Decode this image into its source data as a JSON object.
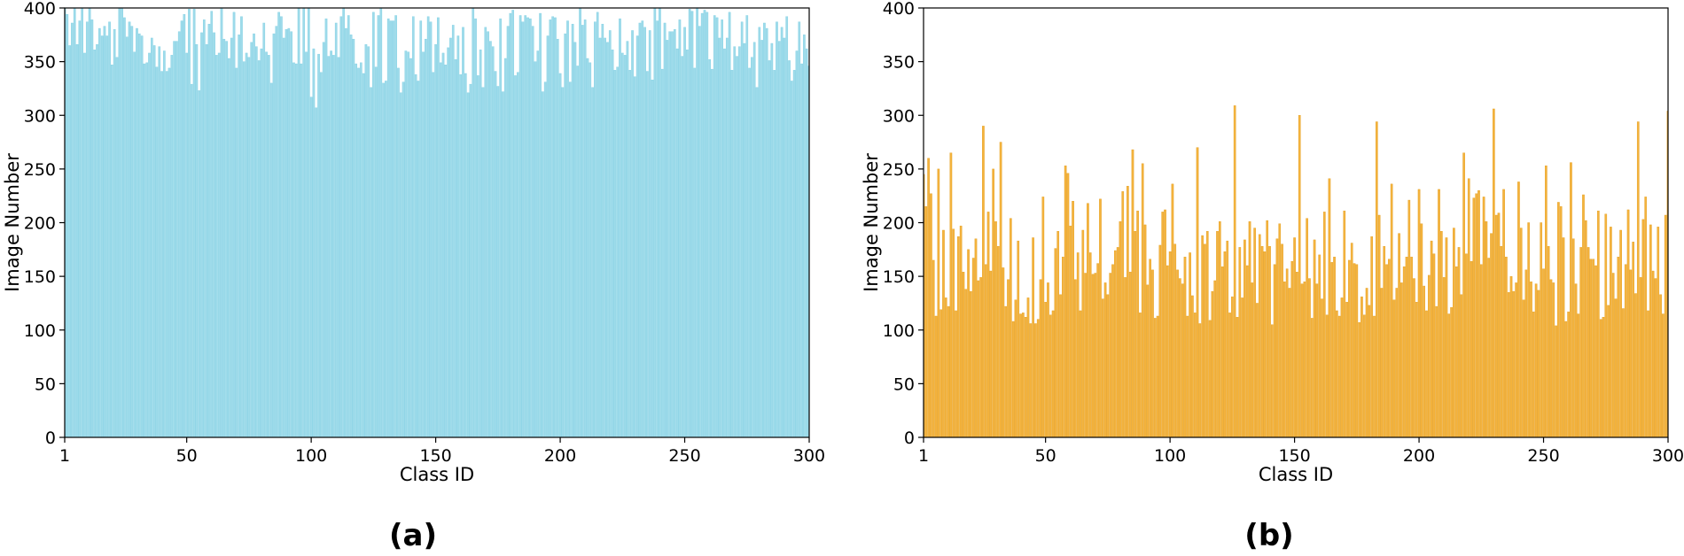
{
  "chart_data": [
    {
      "type": "bar",
      "panel_label": "(a)",
      "xlabel": "Class ID",
      "ylabel": "Image Number",
      "color": "#9edbea",
      "edge_color": "#7fcfe3",
      "xlim": [
        1,
        300
      ],
      "ylim": [
        0,
        400
      ],
      "x_ticks": [
        1,
        50,
        100,
        150,
        200,
        250,
        300
      ],
      "y_ticks": [
        0,
        50,
        100,
        150,
        200,
        250,
        300,
        350,
        400
      ],
      "grid": false,
      "x": [
        1,
        2,
        3,
        4,
        5,
        6,
        7,
        8,
        9,
        10,
        11,
        12,
        13,
        14,
        15,
        16,
        17,
        18,
        19,
        20,
        21,
        22,
        23,
        24,
        25,
        26,
        27,
        28,
        29,
        30,
        31,
        32,
        33,
        34,
        35,
        36,
        37,
        38,
        39,
        40,
        41,
        42,
        43,
        44,
        45,
        46,
        47,
        48,
        49,
        50,
        51,
        52,
        53,
        54,
        55,
        56,
        57,
        58,
        59,
        60,
        61,
        62,
        63,
        64,
        65,
        66,
        67,
        68,
        69,
        70,
        71,
        72,
        73,
        74,
        75,
        76,
        77,
        78,
        79,
        80,
        81,
        82,
        83,
        84,
        85,
        86,
        87,
        88,
        89,
        90,
        91,
        92,
        93,
        94,
        95,
        96,
        97,
        98,
        99,
        100,
        101,
        102,
        103,
        104,
        105,
        106,
        107,
        108,
        109,
        110,
        111,
        112,
        113,
        114,
        115,
        116,
        117,
        118,
        119,
        120,
        121,
        122,
        123,
        124,
        125,
        126,
        127,
        128,
        129,
        130,
        131,
        132,
        133,
        134,
        135,
        136,
        137,
        138,
        139,
        140,
        141,
        142,
        143,
        144,
        145,
        146,
        147,
        148,
        149,
        150,
        151,
        152,
        153,
        154,
        155,
        156,
        157,
        158,
        159,
        160,
        161,
        162,
        163,
        164,
        165,
        166,
        167,
        168,
        169,
        170,
        171,
        172,
        173,
        174,
        175,
        176,
        177,
        178,
        179,
        180,
        181,
        182,
        183,
        184,
        185,
        186,
        187,
        188,
        189,
        190,
        191,
        192,
        193,
        194,
        195,
        196,
        197,
        198,
        199,
        200,
        201,
        202,
        203,
        204,
        205,
        206,
        207,
        208,
        209,
        210,
        211,
        212,
        213,
        214,
        215,
        216,
        217,
        218,
        219,
        220,
        221,
        222,
        223,
        224,
        225,
        226,
        227,
        228,
        229,
        230,
        231,
        232,
        233,
        234,
        235,
        236,
        237,
        238,
        239,
        240,
        241,
        242,
        243,
        244,
        245,
        246,
        247,
        248,
        249,
        250,
        251,
        252,
        253,
        254,
        255,
        256,
        257,
        258,
        259,
        260,
        261,
        262,
        263,
        264,
        265,
        266,
        267,
        268,
        269,
        270,
        271,
        272,
        273,
        274,
        275,
        276,
        277,
        278,
        279,
        280,
        281,
        282,
        283,
        284,
        285,
        286,
        287,
        288,
        289,
        290,
        291,
        292,
        293,
        294,
        295,
        296,
        297,
        298,
        299,
        300
      ],
      "values": [
        401,
        394,
        365,
        386,
        402,
        366,
        388,
        405,
        358,
        387,
        400,
        389,
        361,
        366,
        381,
        374,
        383,
        374,
        387,
        347,
        380,
        354,
        405,
        401,
        391,
        373,
        387,
        383,
        359,
        381,
        376,
        374,
        348,
        349,
        358,
        372,
        365,
        345,
        364,
        341,
        360,
        341,
        344,
        356,
        369,
        369,
        378,
        388,
        394,
        358,
        399,
        329,
        399,
        366,
        323,
        377,
        389,
        366,
        385,
        397,
        377,
        356,
        358,
        406,
        371,
        369,
        353,
        372,
        396,
        344,
        375,
        392,
        350,
        358,
        354,
        368,
        376,
        364,
        351,
        362,
        386,
        359,
        356,
        330,
        376,
        383,
        396,
        392,
        372,
        380,
        381,
        378,
        349,
        348,
        401,
        348,
        406,
        359,
        400,
        317,
        362,
        307,
        357,
        340,
        368,
        390,
        355,
        360,
        356,
        386,
        354,
        392,
        410,
        381,
        393,
        375,
        371,
        348,
        344,
        349,
        339,
        366,
        364,
        326,
        396,
        345,
        393,
        401,
        330,
        332,
        390,
        388,
        388,
        393,
        344,
        321,
        331,
        360,
        359,
        353,
        392,
        338,
        332,
        388,
        359,
        371,
        392,
        387,
        340,
        366,
        391,
        349,
        358,
        347,
        363,
        372,
        384,
        352,
        374,
        338,
        382,
        339,
        321,
        329,
        400,
        390,
        337,
        361,
        326,
        382,
        378,
        369,
        364,
        341,
        327,
        390,
        322,
        353,
        383,
        395,
        398,
        337,
        340,
        393,
        387,
        393,
        391,
        390,
        383,
        350,
        360,
        395,
        322,
        331,
        374,
        389,
        392,
        391,
        371,
        339,
        326,
        376,
        388,
        331,
        385,
        368,
        346,
        406,
        384,
        389,
        353,
        349,
        326,
        387,
        396,
        372,
        385,
        372,
        368,
        379,
        361,
        342,
        345,
        390,
        358,
        356,
        369,
        342,
        379,
        336,
        374,
        386,
        388,
        382,
        341,
        379,
        333,
        403,
        388,
        401,
        343,
        386,
        370,
        378,
        378,
        380,
        362,
        389,
        355,
        382,
        361,
        399,
        397,
        344,
        401,
        383,
        395,
        398,
        396,
        352,
        343,
        393,
        391,
        372,
        389,
        362,
        372,
        396,
        342,
        364,
        355,
        364,
        387,
        367,
        393,
        344,
        354,
        368,
        326,
        382,
        370,
        386,
        381,
        351,
        367,
        342,
        387,
        369,
        382,
        372,
        392,
        351,
        332,
        342,
        360,
        387,
        348,
        375,
        362,
        346
      ]
    },
    {
      "type": "bar",
      "panel_label": "(b)",
      "xlabel": "Class ID",
      "ylabel": "Image Number",
      "color": "#f4b33e",
      "edge_color": "#e39e1f",
      "xlim": [
        1,
        300
      ],
      "ylim": [
        0,
        400
      ],
      "x_ticks": [
        1,
        50,
        100,
        150,
        200,
        250,
        300
      ],
      "y_ticks": [
        0,
        50,
        100,
        150,
        200,
        250,
        300,
        350,
        400
      ],
      "grid": false,
      "x": [
        1,
        2,
        3,
        4,
        5,
        6,
        7,
        8,
        9,
        10,
        11,
        12,
        13,
        14,
        15,
        16,
        17,
        18,
        19,
        20,
        21,
        22,
        23,
        24,
        25,
        26,
        27,
        28,
        29,
        30,
        31,
        32,
        33,
        34,
        35,
        36,
        37,
        38,
        39,
        40,
        41,
        42,
        43,
        44,
        45,
        46,
        47,
        48,
        49,
        50,
        51,
        52,
        53,
        54,
        55,
        56,
        57,
        58,
        59,
        60,
        61,
        62,
        63,
        64,
        65,
        66,
        67,
        68,
        69,
        70,
        71,
        72,
        73,
        74,
        75,
        76,
        77,
        78,
        79,
        80,
        81,
        82,
        83,
        84,
        85,
        86,
        87,
        88,
        89,
        90,
        91,
        92,
        93,
        94,
        95,
        96,
        97,
        98,
        99,
        100,
        101,
        102,
        103,
        104,
        105,
        106,
        107,
        108,
        109,
        110,
        111,
        112,
        113,
        114,
        115,
        116,
        117,
        118,
        119,
        120,
        121,
        122,
        123,
        124,
        125,
        126,
        127,
        128,
        129,
        130,
        131,
        132,
        133,
        134,
        135,
        136,
        137,
        138,
        139,
        140,
        141,
        142,
        143,
        144,
        145,
        146,
        147,
        148,
        149,
        150,
        151,
        152,
        153,
        154,
        155,
        156,
        157,
        158,
        159,
        160,
        161,
        162,
        163,
        164,
        165,
        166,
        167,
        168,
        169,
        170,
        171,
        172,
        173,
        174,
        175,
        176,
        177,
        178,
        179,
        180,
        181,
        182,
        183,
        184,
        185,
        186,
        187,
        188,
        189,
        190,
        191,
        192,
        193,
        194,
        195,
        196,
        197,
        198,
        199,
        200,
        201,
        202,
        203,
        204,
        205,
        206,
        207,
        208,
        209,
        210,
        211,
        212,
        213,
        214,
        215,
        216,
        217,
        218,
        219,
        220,
        221,
        222,
        223,
        224,
        225,
        226,
        227,
        228,
        229,
        230,
        231,
        232,
        233,
        234,
        235,
        236,
        237,
        238,
        239,
        240,
        241,
        242,
        243,
        244,
        245,
        246,
        247,
        248,
        249,
        250,
        251,
        252,
        253,
        254,
        255,
        256,
        257,
        258,
        259,
        260,
        261,
        262,
        263,
        264,
        265,
        266,
        267,
        268,
        269,
        270,
        271,
        272,
        273,
        274,
        275,
        276,
        277,
        278,
        279,
        280,
        281,
        282,
        283,
        284,
        285,
        286,
        287,
        288,
        289,
        290,
        291,
        292,
        293,
        294,
        295,
        296,
        297,
        298,
        299,
        300
      ],
      "values": [
        245,
        215,
        260,
        227,
        165,
        113,
        250,
        119,
        193,
        130,
        122,
        265,
        194,
        118,
        187,
        197,
        154,
        138,
        175,
        136,
        167,
        185,
        146,
        149,
        290,
        161,
        210,
        155,
        250,
        201,
        178,
        275,
        158,
        122,
        147,
        204,
        108,
        128,
        183,
        115,
        116,
        112,
        130,
        106,
        186,
        106,
        110,
        147,
        224,
        126,
        144,
        114,
        118,
        176,
        192,
        133,
        168,
        253,
        246,
        197,
        220,
        147,
        172,
        118,
        193,
        153,
        218,
        172,
        152,
        153,
        162,
        222,
        129,
        144,
        133,
        153,
        161,
        174,
        177,
        201,
        229,
        149,
        234,
        154,
        268,
        192,
        211,
        116,
        255,
        198,
        142,
        166,
        156,
        111,
        113,
        179,
        210,
        212,
        160,
        173,
        236,
        180,
        156,
        148,
        143,
        168,
        113,
        172,
        132,
        116,
        270,
        106,
        188,
        180,
        192,
        109,
        136,
        146,
        192,
        201,
        159,
        173,
        183,
        116,
        131,
        309,
        112,
        177,
        130,
        184,
        160,
        201,
        144,
        195,
        125,
        189,
        178,
        173,
        202,
        178,
        105,
        161,
        185,
        199,
        180,
        145,
        157,
        139,
        164,
        186,
        154,
        300,
        143,
        145,
        204,
        148,
        111,
        184,
        143,
        170,
        129,
        210,
        114,
        241,
        163,
        168,
        118,
        113,
        130,
        211,
        126,
        165,
        181,
        162,
        161,
        107,
        131,
        114,
        139,
        123,
        187,
        113,
        294,
        207,
        139,
        178,
        161,
        166,
        236,
        128,
        139,
        190,
        144,
        159,
        168,
        221,
        168,
        148,
        126,
        231,
        199,
        141,
        118,
        151,
        183,
        171,
        122,
        231,
        192,
        149,
        186,
        115,
        121,
        195,
        159,
        177,
        133,
        265,
        171,
        241,
        164,
        223,
        227,
        230,
        161,
        224,
        201,
        167,
        190,
        306,
        207,
        209,
        178,
        231,
        168,
        135,
        150,
        136,
        144,
        238,
        195,
        128,
        156,
        200,
        145,
        117,
        143,
        137,
        200,
        157,
        253,
        178,
        147,
        144,
        104,
        219,
        215,
        186,
        108,
        117,
        256,
        185,
        143,
        115,
        177,
        226,
        202,
        177,
        166,
        166,
        160,
        211,
        110,
        112,
        208,
        123,
        196,
        153,
        129,
        168,
        193,
        120,
        161,
        212,
        156,
        182,
        134,
        294,
        149,
        203,
        224,
        118,
        198,
        155,
        148,
        196,
        133,
        115,
        207,
        304
      ]
    }
  ]
}
